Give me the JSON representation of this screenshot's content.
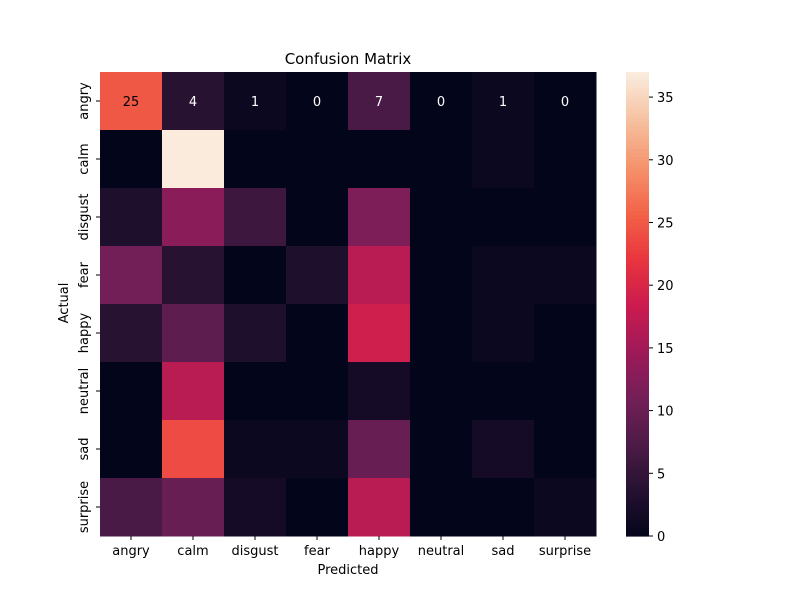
{
  "chart_data": {
    "type": "heatmap",
    "title": "Confusion Matrix",
    "xlabel": "Predicted",
    "ylabel": "Actual",
    "x_categories": [
      "angry",
      "calm",
      "disgust",
      "fear",
      "happy",
      "neutral",
      "sad",
      "surprise"
    ],
    "y_categories": [
      "angry",
      "calm",
      "disgust",
      "fear",
      "happy",
      "neutral",
      "sad",
      "surprise"
    ],
    "values": [
      [
        25,
        4,
        1,
        0,
        7,
        0,
        1,
        0
      ],
      [
        0,
        37,
        0,
        0,
        0,
        0,
        1,
        0
      ],
      [
        3,
        13,
        6,
        0,
        12,
        0,
        0,
        0
      ],
      [
        11,
        4,
        0,
        3,
        17,
        0,
        1,
        1
      ],
      [
        4,
        9,
        3,
        0,
        19,
        0,
        1,
        0
      ],
      [
        0,
        17,
        0,
        0,
        2,
        0,
        0,
        0
      ],
      [
        0,
        24,
        1,
        1,
        10,
        0,
        2,
        0
      ],
      [
        7,
        10,
        2,
        0,
        17,
        0,
        0,
        1
      ]
    ],
    "annotated_row": 0,
    "colorbar": {
      "range": [
        0,
        37
      ],
      "ticks": [
        0,
        5,
        10,
        15,
        20,
        25,
        30,
        35
      ],
      "colormap": "rocket"
    }
  }
}
